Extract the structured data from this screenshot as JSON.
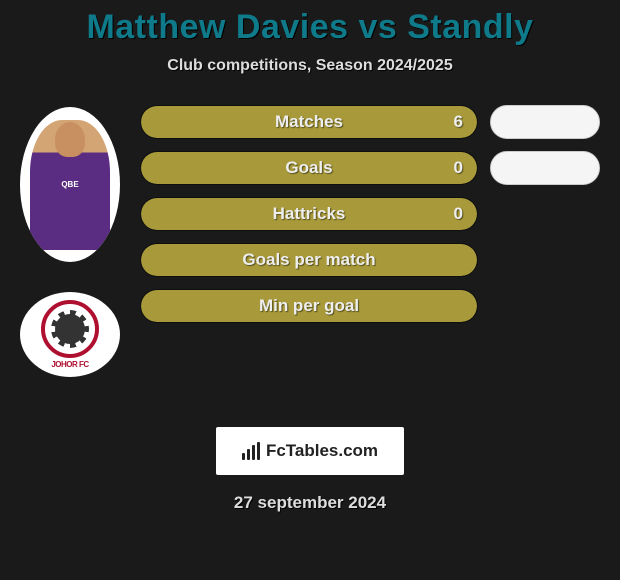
{
  "title": "Matthew Davies vs Standly",
  "subtitle": "Club competitions, Season 2024/2025",
  "colors": {
    "title": "#0e7a8a",
    "background": "#1a1a1a",
    "bar_fill": "#a89a3a",
    "bar_right": "#f5f5f5",
    "text": "#eeeeee"
  },
  "player": {
    "jersey_sponsor": "QBE",
    "jersey_color_top": "#d4a574",
    "jersey_color_main": "#5a2d82"
  },
  "club": {
    "name": "JOHOR FC",
    "logo_border": "#b01030"
  },
  "stats": [
    {
      "label": "Matches",
      "left_value": "6",
      "left_fill_pct": 100,
      "show_right": true
    },
    {
      "label": "Goals",
      "left_value": "0",
      "left_fill_pct": 100,
      "show_right": true
    },
    {
      "label": "Hattricks",
      "left_value": "0",
      "left_fill_pct": 100,
      "show_right": false
    },
    {
      "label": "Goals per match",
      "left_value": "",
      "left_fill_pct": 100,
      "show_right": false
    },
    {
      "label": "Min per goal",
      "left_value": "",
      "left_fill_pct": 100,
      "show_right": false
    }
  ],
  "footer": {
    "brand": "FcTables.com",
    "date": "27 september 2024"
  },
  "typography": {
    "title_fontsize": 34,
    "subtitle_fontsize": 16,
    "bar_label_fontsize": 17
  }
}
